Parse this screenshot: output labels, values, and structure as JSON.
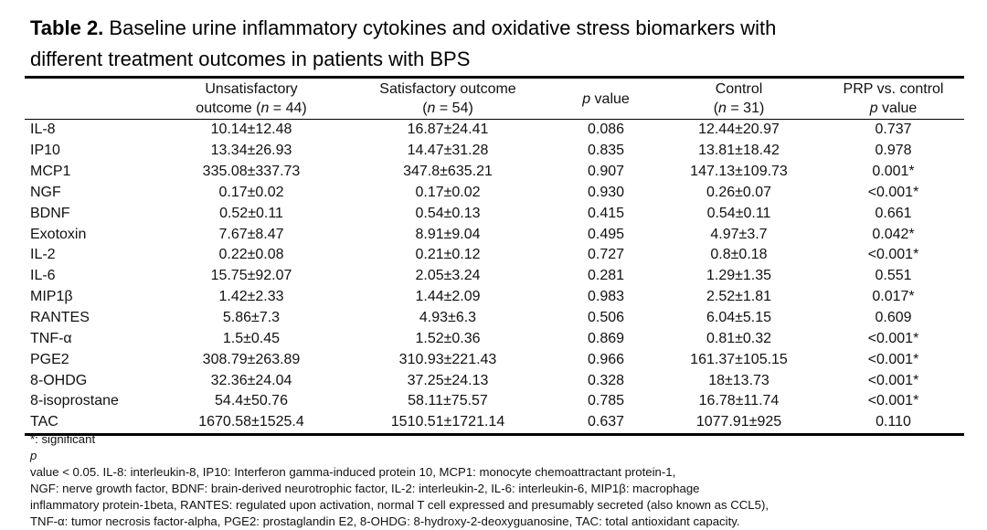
{
  "caption": {
    "label": "Table 2.",
    "line1": " Baseline urine inflammatory cytokines and oxidative stress biomarkers with",
    "line2": "different treatment outcomes in patients with BPS"
  },
  "columns": {
    "unsat": {
      "line1": "Unsatisfactory",
      "line2_pre": "outcome (",
      "n_italic": "n",
      "line2_post": " = 44)"
    },
    "sat": {
      "line1": "Satisfactory outcome",
      "line2_pre": "(",
      "n_italic": "n",
      "line2_post": " = 54)"
    },
    "pvalue": {
      "p_italic": "p",
      "label_post": " value"
    },
    "control": {
      "line1": "Control",
      "line2_pre": "(",
      "n_italic": "n",
      "line2_post": " = 31)"
    },
    "prp": {
      "line1": "PRP vs. control",
      "p_italic": "p",
      "line2_post": " value"
    }
  },
  "rows": [
    {
      "name": "IL-8",
      "unsat": "10.14±12.48",
      "sat": "16.87±24.41",
      "p": "0.086",
      "control": "12.44±20.97",
      "prp_p": "0.737"
    },
    {
      "name": "IP10",
      "unsat": "13.34±26.93",
      "sat": "14.47±31.28",
      "p": "0.835",
      "control": "13.81±18.42",
      "prp_p": "0.978"
    },
    {
      "name": "MCP1",
      "unsat": "335.08±337.73",
      "sat": "347.8±635.21",
      "p": "0.907",
      "control": "147.13±109.73",
      "prp_p": "0.001*"
    },
    {
      "name": "NGF",
      "unsat": "0.17±0.02",
      "sat": "0.17±0.02",
      "p": "0.930",
      "control": "0.26±0.07",
      "prp_p": "<0.001*"
    },
    {
      "name": "BDNF",
      "unsat": "0.52±0.11",
      "sat": "0.54±0.13",
      "p": "0.415",
      "control": "0.54±0.11",
      "prp_p": "0.661"
    },
    {
      "name": "Exotoxin",
      "unsat": "7.67±8.47",
      "sat": "8.91±9.04",
      "p": "0.495",
      "control": "4.97±3.7",
      "prp_p": "0.042*"
    },
    {
      "name": "IL-2",
      "unsat": "0.22±0.08",
      "sat": "0.21±0.12",
      "p": "0.727",
      "control": "0.8±0.18",
      "prp_p": "<0.001*"
    },
    {
      "name": "IL-6",
      "unsat": "15.75±92.07",
      "sat": "2.05±3.24",
      "p": "0.281",
      "control": "1.29±1.35",
      "prp_p": "0.551"
    },
    {
      "name": "MIP1β",
      "unsat": "1.42±2.33",
      "sat": "1.44±2.09",
      "p": "0.983",
      "control": "2.52±1.81",
      "prp_p": "0.017*"
    },
    {
      "name": "RANTES",
      "unsat": "5.86±7.3",
      "sat": "4.93±6.3",
      "p": "0.506",
      "control": "6.04±5.15",
      "prp_p": "0.609"
    },
    {
      "name": "TNF-α",
      "unsat": "1.5±0.45",
      "sat": "1.52±0.36",
      "p": "0.869",
      "control": "0.81±0.32",
      "prp_p": "<0.001*"
    },
    {
      "name": "PGE2",
      "unsat": "308.79±263.89",
      "sat": "310.93±221.43",
      "p": "0.966",
      "control": "161.37±105.15",
      "prp_p": "<0.001*"
    },
    {
      "name": "8-OHDG",
      "unsat": "32.36±24.04",
      "sat": "37.25±24.13",
      "p": "0.328",
      "control": "18±13.73",
      "prp_p": "<0.001*"
    },
    {
      "name": "8-isoprostane",
      "unsat": "54.4±50.76",
      "sat": "58.11±75.57",
      "p": "0.785",
      "control": "16.78±11.74",
      "prp_p": "<0.001*"
    },
    {
      "name": "TAC",
      "unsat": "1670.58±1525.4",
      "sat": "1510.51±1721.14",
      "p": "0.637",
      "control": "1077.91±925",
      "prp_p": "0.110"
    }
  ],
  "footnote": {
    "lead": "*: significant ",
    "p_italic": "p",
    "line1_rest": " value < 0.05. IL-8: interleukin-8, IP10: Interferon gamma-induced protein 10, MCP1: monocyte chemoattractant protein-1,",
    "line2": "NGF: nerve growth factor, BDNF: brain-derived neurotrophic factor, IL-2: interleukin-2, IL-6: interleukin-6, MIP1β: macrophage",
    "line3": "inflammatory protein-1beta, RANTES: regulated upon activation, normal T cell expressed and presumably secreted (also known as CCL5),",
    "line4": "TNF-α: tumor necrosis factor-alpha, PGE2: prostaglandin E2, 8-OHDG: 8-hydroxy-2-deoxyguanosine, TAC: total antioxidant capacity."
  }
}
